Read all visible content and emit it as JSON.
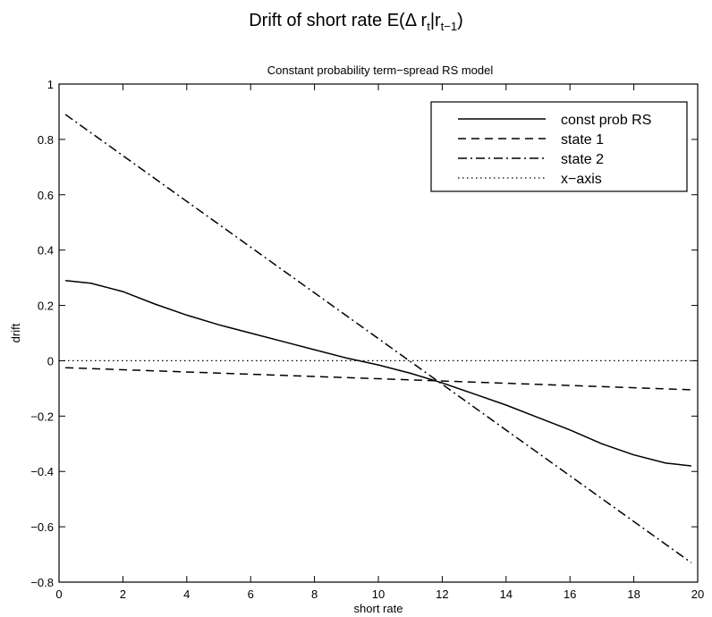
{
  "figure_title": {
    "main": "Drift of short rate E(Δ r",
    "sub_t": "t",
    "bar": "|r",
    "sub_t1": "t−1",
    "close": ")"
  },
  "chart_data": {
    "type": "line",
    "title": "Constant probability term−spread RS model",
    "xlabel": "short rate",
    "ylabel": "drift",
    "xlim": [
      0,
      20
    ],
    "ylim": [
      -0.8,
      1
    ],
    "xticks": [
      0,
      2,
      4,
      6,
      8,
      10,
      12,
      14,
      16,
      18,
      20
    ],
    "yticks": [
      -0.8,
      -0.6,
      -0.4,
      -0.2,
      0,
      0.2,
      0.4,
      0.6,
      0.8,
      1
    ],
    "ytick_labels": [
      "−0.8",
      "−0.6",
      "−0.4",
      "−0.2",
      "0",
      "0.2",
      "0.4",
      "0.6",
      "0.8",
      "1"
    ],
    "legend_position": "top-right",
    "series": [
      {
        "name": "const prob RS",
        "style": "solid",
        "x": [
          0.2,
          1,
          2,
          3,
          4,
          5,
          6,
          7,
          8,
          9,
          10,
          11,
          12,
          13,
          14,
          15,
          16,
          17,
          18,
          19,
          19.8
        ],
        "y": [
          0.29,
          0.28,
          0.25,
          0.205,
          0.165,
          0.13,
          0.1,
          0.07,
          0.04,
          0.01,
          -0.015,
          -0.045,
          -0.08,
          -0.12,
          -0.16,
          -0.205,
          -0.25,
          -0.3,
          -0.34,
          -0.37,
          -0.38
        ]
      },
      {
        "name": "state 1",
        "style": "dashed",
        "x": [
          0.2,
          19.8
        ],
        "y": [
          -0.025,
          -0.105
        ]
      },
      {
        "name": "state 2",
        "style": "dashdot",
        "x": [
          0.2,
          19.8
        ],
        "y": [
          0.89,
          -0.73
        ]
      },
      {
        "name": "x−axis",
        "style": "dotted",
        "x": [
          0,
          20
        ],
        "y": [
          0,
          0
        ]
      }
    ]
  }
}
